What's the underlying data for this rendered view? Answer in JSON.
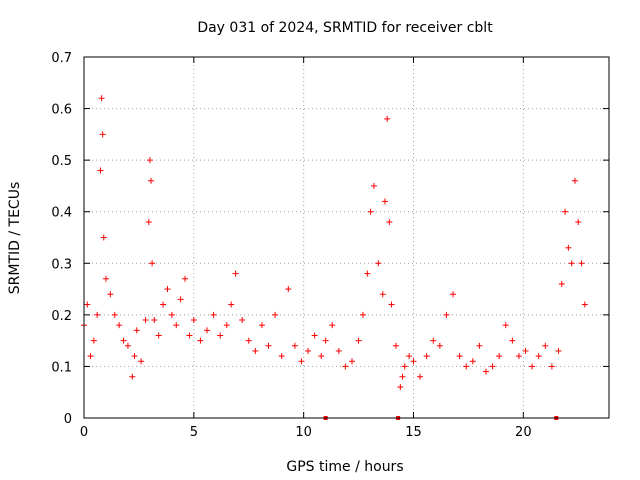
{
  "chart_data": {
    "type": "scatter",
    "title": "Day 031 of 2024, SRMTID for receiver cblt",
    "xlabel": "GPS time / hours",
    "ylabel": "SRMTID / TECUs",
    "xlim": [
      0,
      23.9
    ],
    "ylim": [
      0,
      0.7
    ],
    "xticks": [
      0,
      5,
      10,
      15,
      20
    ],
    "xtick_labels": [
      "0",
      "5",
      "10",
      "15",
      "20"
    ],
    "yticks": [
      0,
      0.1,
      0.2,
      0.3,
      0.4,
      0.5,
      0.6,
      0.7
    ],
    "ytick_labels": [
      "0",
      "0.1",
      "0.2",
      "0.3",
      "0.4",
      "0.5",
      "0.6",
      "0.7"
    ],
    "grid": true,
    "marker": "+",
    "color": "#ff0000",
    "series": [
      {
        "name": "SRMTID",
        "x": [
          0.0,
          0.15,
          0.3,
          0.45,
          0.6,
          0.75,
          0.8,
          0.85,
          0.9,
          1.0,
          1.2,
          1.4,
          1.6,
          1.8,
          2.0,
          2.2,
          2.3,
          2.4,
          2.6,
          2.8,
          2.95,
          3.0,
          3.05,
          3.1,
          3.2,
          3.4,
          3.6,
          3.8,
          4.0,
          4.2,
          4.4,
          4.6,
          4.8,
          5.0,
          5.3,
          5.6,
          5.9,
          6.2,
          6.5,
          6.7,
          6.9,
          7.2,
          7.5,
          7.8,
          8.1,
          8.4,
          8.7,
          9.0,
          9.3,
          9.6,
          9.9,
          10.2,
          10.5,
          10.8,
          11.0,
          11.3,
          11.6,
          11.9,
          12.2,
          12.5,
          12.7,
          12.9,
          13.05,
          13.2,
          13.4,
          13.6,
          13.7,
          13.8,
          13.9,
          14.0,
          14.2,
          14.4,
          14.5,
          14.6,
          14.8,
          15.0,
          15.3,
          15.6,
          15.9,
          16.2,
          16.5,
          16.8,
          17.1,
          17.4,
          17.7,
          18.0,
          18.3,
          18.6,
          18.9,
          19.2,
          19.5,
          19.8,
          20.1,
          20.4,
          20.7,
          21.0,
          21.3,
          21.6,
          21.75,
          21.9,
          22.05,
          22.2,
          22.35,
          22.5,
          22.65,
          22.8
        ],
        "y": [
          0.18,
          0.22,
          0.12,
          0.15,
          0.2,
          0.48,
          0.62,
          0.55,
          0.35,
          0.27,
          0.24,
          0.2,
          0.18,
          0.15,
          0.14,
          0.08,
          0.12,
          0.17,
          0.11,
          0.19,
          0.38,
          0.5,
          0.46,
          0.3,
          0.19,
          0.16,
          0.22,
          0.25,
          0.2,
          0.18,
          0.23,
          0.27,
          0.16,
          0.19,
          0.15,
          0.17,
          0.2,
          0.16,
          0.18,
          0.22,
          0.28,
          0.19,
          0.15,
          0.13,
          0.18,
          0.14,
          0.2,
          0.12,
          0.25,
          0.14,
          0.11,
          0.13,
          0.16,
          0.12,
          0.15,
          0.18,
          0.13,
          0.1,
          0.11,
          0.15,
          0.2,
          0.28,
          0.4,
          0.45,
          0.3,
          0.24,
          0.42,
          0.58,
          0.38,
          0.22,
          0.14,
          0.06,
          0.08,
          0.1,
          0.12,
          0.11,
          0.08,
          0.12,
          0.15,
          0.14,
          0.2,
          0.24,
          0.12,
          0.1,
          0.11,
          0.14,
          0.09,
          0.1,
          0.12,
          0.18,
          0.15,
          0.12,
          0.13,
          0.1,
          0.12,
          0.14,
          0.1,
          0.13,
          0.26,
          0.4,
          0.33,
          0.3,
          0.46,
          0.38,
          0.3,
          0.22
        ]
      }
    ],
    "gap_markers_x": [
      11.0,
      14.3,
      21.5
    ]
  }
}
